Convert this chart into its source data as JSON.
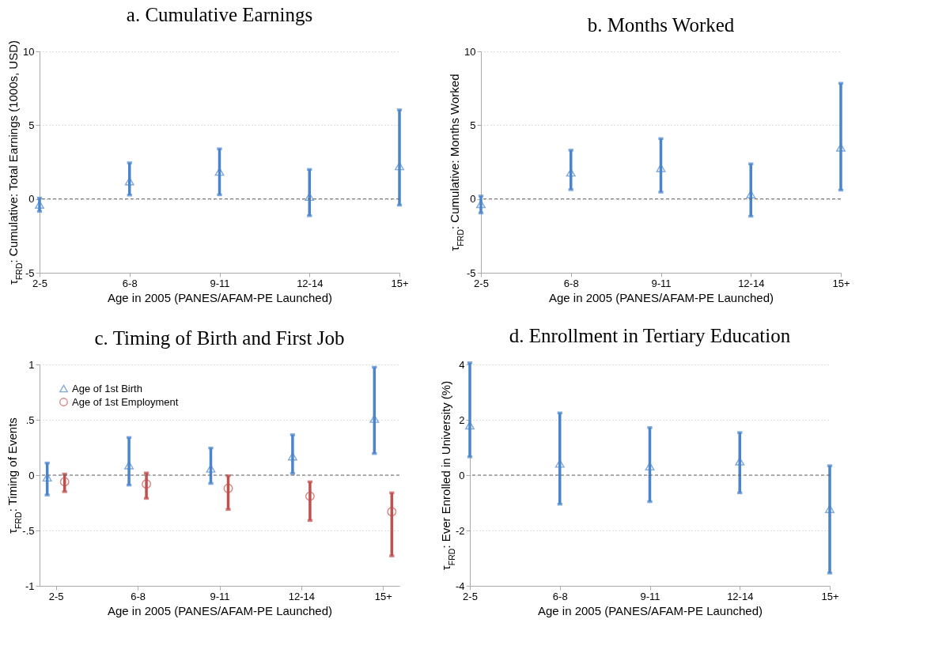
{
  "chart_data": [
    {
      "type": "scatter",
      "title": "a. Cumulative Earnings",
      "xlabel": "Age in 2005 (PANES/AFAM-PE Launched)",
      "ylabel": "τ$_{FRD}$: Cumulative: Total Earnings (1000s, USD)",
      "categories": [
        "2-5",
        "6-8",
        "9-11",
        "12-14",
        "15+"
      ],
      "series": [
        {
          "color": "#4a84cc",
          "marker": "triangle",
          "values": [
            -0.38,
            1.2,
            1.85,
            0.15,
            2.23
          ],
          "errors": [
            [
              -0.84,
              0.06
            ],
            [
              0.26,
              2.45
            ],
            [
              0.28,
              3.4
            ],
            [
              -1.14,
              2.0
            ],
            [
              -0.42,
              6.04
            ]
          ]
        }
      ],
      "ylim": [
        -5,
        10
      ],
      "yticks": [
        -5,
        0,
        5,
        10
      ],
      "grid": "y",
      "ref_lines": [
        {
          "axis": "y",
          "value": 0,
          "line_style": "dashed",
          "color": "#606060"
        }
      ]
    },
    {
      "type": "scatter",
      "title": "b. Months Worked",
      "xlabel": "Age in 2005 (PANES/AFAM-PE Launched)",
      "ylabel": "τ$_{FRD}$: Cumulative: Months Worked",
      "categories": [
        "2-5",
        "6-8",
        "9-11",
        "12-14",
        "15+"
      ],
      "series": [
        {
          "color": "#4a84cc",
          "marker": "triangle",
          "values": [
            -0.34,
            1.8,
            2.1,
            0.32,
            3.49
          ],
          "errors": [
            [
              -0.95,
              0.2
            ],
            [
              0.63,
              3.31
            ],
            [
              0.46,
              4.09
            ],
            [
              -1.17,
              2.38
            ],
            [
              0.6,
              7.84
            ]
          ]
        }
      ],
      "ylim": [
        -5,
        10
      ],
      "yticks": [
        -5,
        0,
        5,
        10
      ],
      "grid": "y",
      "ref_lines": [
        {
          "axis": "y",
          "value": 0,
          "line_style": "dashed",
          "color": "#606060"
        }
      ]
    },
    {
      "type": "scatter",
      "title": "c. Timing of Birth and First Job",
      "xlabel": "Age in 2005 (PANES/AFAM-PE Launched)",
      "ylabel": "τ$_{FRD}$: Timing of Events",
      "categories": [
        "2-5",
        "6-8",
        "9-11",
        "12-14",
        "15+"
      ],
      "series": [
        {
          "name": "Age of 1st Birth",
          "color": "#4a84cc",
          "marker": "triangle",
          "values": [
            -0.02,
            0.09,
            0.06,
            0.17,
            0.51
          ],
          "errors": [
            [
              -0.18,
              0.11
            ],
            [
              -0.09,
              0.34
            ],
            [
              -0.075,
              0.245
            ],
            [
              0.015,
              0.365
            ],
            [
              0.195,
              0.975
            ]
          ]
        },
        {
          "name": "Age of 1st Employment",
          "color": "#c0504d",
          "marker": "circle",
          "values": [
            -0.06,
            -0.08,
            -0.12,
            -0.19,
            -0.33
          ],
          "errors": [
            [
              -0.15,
              0.01
            ],
            [
              -0.21,
              0.02
            ],
            [
              -0.31,
              -0.005
            ],
            [
              -0.41,
              -0.06
            ],
            [
              -0.73,
              -0.16
            ]
          ]
        }
      ],
      "ylim": [
        -1,
        1
      ],
      "yticks": [
        -1,
        {
          "value": -0.5,
          "label": "-.5"
        },
        0,
        {
          "value": 0.5,
          "label": ".5"
        },
        1
      ],
      "grid": "y",
      "legend": "top left",
      "ref_lines": [
        {
          "axis": "y",
          "value": 0,
          "line_style": "dashed",
          "color": "#606060"
        }
      ]
    },
    {
      "type": "scatter",
      "title": "d. Enrollment in Tertiary Education",
      "xlabel": "Age in 2005 (PANES/AFAM-PE Launched)",
      "ylabel": "τ$_{FRD}$: Ever Enrolled in University (%)",
      "categories": [
        "2-5",
        "6-8",
        "9-11",
        "12-14",
        "15+"
      ],
      "series": [
        {
          "color": "#4a84cc",
          "marker": "triangle",
          "values": [
            1.8,
            0.42,
            0.32,
            0.5,
            -1.22
          ],
          "errors": [
            [
              0.66,
              4.06
            ],
            [
              -1.05,
              2.25
            ],
            [
              -0.96,
              1.72
            ],
            [
              -0.64,
              1.54
            ],
            [
              -3.54,
              0.34
            ]
          ]
        }
      ],
      "ylim": [
        -4,
        4
      ],
      "yticks": [
        -4,
        -2,
        0,
        2,
        4
      ],
      "grid": "y",
      "ref_lines": [
        {
          "axis": "y",
          "value": 0,
          "line_style": "dashed",
          "color": "#606060"
        }
      ]
    }
  ]
}
